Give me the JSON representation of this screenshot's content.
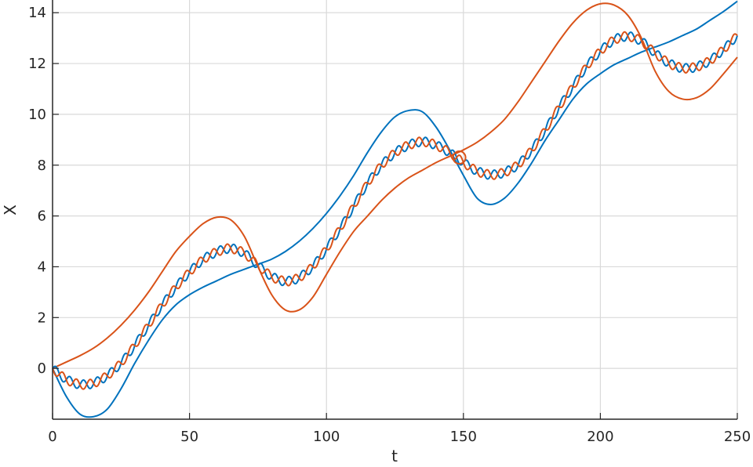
{
  "chart_data": {
    "type": "line",
    "title": "",
    "xlabel": "t",
    "ylabel": "X",
    "xlim": [
      0,
      250
    ],
    "ylim": [
      -2,
      14.5
    ],
    "xticks": [
      0,
      50,
      100,
      150,
      200,
      250
    ],
    "yticks": [
      0,
      2,
      4,
      6,
      8,
      10,
      12,
      14
    ],
    "grid": true,
    "legend": "none",
    "series": [
      {
        "color": "#0072BD",
        "style": "envelope-lower",
        "x": [
          0,
          5,
          10,
          15,
          20,
          25,
          30,
          35,
          40,
          45,
          50,
          55,
          60,
          65,
          70,
          75,
          80,
          85,
          90,
          95,
          100,
          105,
          110,
          115,
          120,
          125,
          130,
          135,
          140,
          145,
          150,
          155,
          160,
          165,
          170,
          175,
          180,
          185,
          190,
          195,
          200,
          205,
          210,
          215,
          220,
          225,
          230,
          235,
          240,
          245,
          250
        ],
        "y": [
          0.0,
          -1.1,
          -1.8,
          -1.9,
          -1.6,
          -0.8,
          0.2,
          1.1,
          1.9,
          2.5,
          2.9,
          3.2,
          3.45,
          3.7,
          3.9,
          4.1,
          4.3,
          4.6,
          5.0,
          5.5,
          6.1,
          6.8,
          7.6,
          8.5,
          9.3,
          9.9,
          10.15,
          10.1,
          9.5,
          8.6,
          7.6,
          6.7,
          6.45,
          6.7,
          7.3,
          8.1,
          9.0,
          9.8,
          10.6,
          11.2,
          11.6,
          11.95,
          12.2,
          12.45,
          12.65,
          12.85,
          13.1,
          13.35,
          13.7,
          14.05,
          14.45
        ]
      },
      {
        "color": "#D95319",
        "style": "envelope-upper",
        "x": [
          0,
          5,
          10,
          15,
          20,
          25,
          30,
          35,
          40,
          45,
          50,
          55,
          60,
          65,
          70,
          75,
          80,
          85,
          90,
          95,
          100,
          105,
          110,
          115,
          120,
          125,
          130,
          135,
          140,
          145,
          150,
          155,
          160,
          165,
          170,
          175,
          180,
          185,
          190,
          195,
          200,
          205,
          210,
          215,
          220,
          225,
          230,
          235,
          240,
          245,
          250
        ],
        "y": [
          0.0,
          0.25,
          0.5,
          0.8,
          1.2,
          1.7,
          2.3,
          3.0,
          3.8,
          4.6,
          5.2,
          5.7,
          5.95,
          5.85,
          5.2,
          4.0,
          2.9,
          2.3,
          2.3,
          2.8,
          3.7,
          4.6,
          5.4,
          6.0,
          6.6,
          7.1,
          7.5,
          7.8,
          8.1,
          8.35,
          8.6,
          8.9,
          9.3,
          9.8,
          10.5,
          11.3,
          12.1,
          12.9,
          13.6,
          14.1,
          14.35,
          14.3,
          13.9,
          13.0,
          11.7,
          10.9,
          10.6,
          10.65,
          11.0,
          11.6,
          12.25
        ]
      },
      {
        "color": "#0072BD",
        "style": "oscillating",
        "osc_amplitude": 0.18,
        "osc_period": 5,
        "osc_phase": 0,
        "x": [
          0,
          5,
          10,
          15,
          20,
          25,
          30,
          35,
          40,
          45,
          50,
          55,
          60,
          65,
          70,
          75,
          80,
          85,
          90,
          95,
          100,
          105,
          110,
          115,
          120,
          125,
          130,
          135,
          140,
          145,
          150,
          155,
          160,
          165,
          170,
          175,
          180,
          185,
          190,
          195,
          200,
          205,
          210,
          215,
          220,
          225,
          230,
          235,
          240,
          245,
          250
        ],
        "y": [
          0.0,
          -0.45,
          -0.65,
          -0.6,
          -0.3,
          0.2,
          0.9,
          1.7,
          2.5,
          3.2,
          3.8,
          4.3,
          4.6,
          4.75,
          4.55,
          4.05,
          3.6,
          3.4,
          3.55,
          4.0,
          4.7,
          5.5,
          6.4,
          7.3,
          8.0,
          8.5,
          8.8,
          8.95,
          8.8,
          8.5,
          8.1,
          7.75,
          7.6,
          7.7,
          8.0,
          8.6,
          9.4,
          10.3,
          11.1,
          11.9,
          12.5,
          12.95,
          13.1,
          12.9,
          12.4,
          12.0,
          11.8,
          11.85,
          12.1,
          12.55,
          13.1
        ]
      },
      {
        "color": "#D95319",
        "style": "oscillating",
        "osc_amplitude": 0.18,
        "osc_period": 5,
        "osc_phase": 3.14159,
        "x": [
          0,
          5,
          10,
          15,
          20,
          25,
          30,
          35,
          40,
          45,
          50,
          55,
          60,
          65,
          70,
          75,
          80,
          85,
          90,
          95,
          100,
          105,
          110,
          115,
          120,
          125,
          130,
          135,
          140,
          145,
          150,
          155,
          160,
          165,
          170,
          175,
          180,
          185,
          190,
          195,
          200,
          205,
          210,
          215,
          220,
          225,
          230,
          235,
          240,
          245,
          250
        ],
        "y": [
          0.0,
          -0.45,
          -0.65,
          -0.6,
          -0.3,
          0.2,
          0.9,
          1.7,
          2.5,
          3.2,
          3.8,
          4.3,
          4.6,
          4.75,
          4.55,
          4.05,
          3.6,
          3.4,
          3.55,
          4.0,
          4.7,
          5.5,
          6.4,
          7.3,
          8.0,
          8.5,
          8.8,
          8.95,
          8.8,
          8.5,
          8.1,
          7.75,
          7.6,
          7.7,
          8.0,
          8.6,
          9.4,
          10.3,
          11.1,
          11.9,
          12.5,
          12.95,
          13.1,
          12.9,
          12.4,
          12.0,
          11.8,
          11.85,
          12.1,
          12.55,
          13.1
        ]
      }
    ],
    "markers": [
      {
        "x": 148.5,
        "y": 8.3,
        "color": "#D95319",
        "shape": "circle"
      }
    ]
  }
}
